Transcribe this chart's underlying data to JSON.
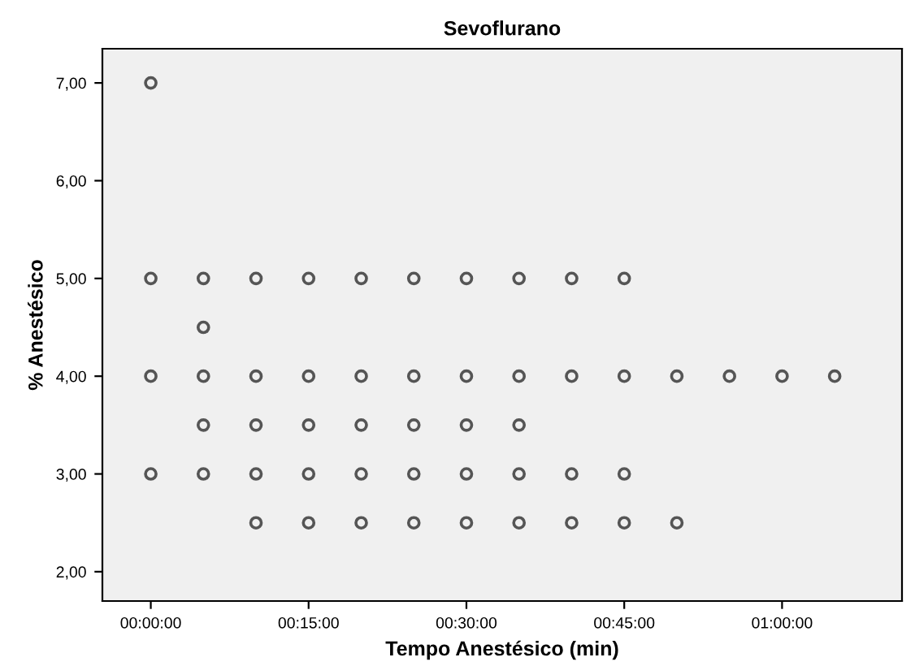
{
  "chart_data": {
    "type": "scatter",
    "title": "Sevoflurano",
    "xlabel": "Tempo Anestésico (min)",
    "ylabel": "% Anestésico",
    "marker": "circle",
    "grid": false,
    "legend": false,
    "xlim": [
      -4.6,
      71.4
    ],
    "ylim": [
      1.7,
      7.35
    ],
    "xticks": [
      {
        "value": 0,
        "label": "00:00:00"
      },
      {
        "value": 15,
        "label": "00:15:00"
      },
      {
        "value": 30,
        "label": "00:30:00"
      },
      {
        "value": 45,
        "label": "00:45:00"
      },
      {
        "value": 60,
        "label": "01:00:00"
      }
    ],
    "yticks": [
      {
        "value": 2,
        "label": "2,00"
      },
      {
        "value": 3,
        "label": "3,00"
      },
      {
        "value": 4,
        "label": "4,00"
      },
      {
        "value": 5,
        "label": "5,00"
      },
      {
        "value": 6,
        "label": "6,00"
      },
      {
        "value": 7,
        "label": "7,00"
      }
    ],
    "series": [
      {
        "color": "#555555",
        "x": [
          0,
          0,
          5,
          10,
          15,
          20,
          25,
          30,
          35,
          40,
          45,
          5,
          0,
          5,
          10,
          15,
          20,
          25,
          30,
          35,
          40,
          45,
          50,
          55,
          60,
          65,
          5,
          10,
          15,
          20,
          25,
          30,
          35,
          0,
          5,
          10,
          15,
          20,
          25,
          30,
          35,
          40,
          45,
          10,
          15,
          20,
          25,
          30,
          35,
          40,
          45,
          50
        ],
        "values": [
          7,
          5,
          5,
          5,
          5,
          5,
          5,
          5,
          5,
          5,
          5,
          4.5,
          4,
          4,
          4,
          4,
          4,
          4,
          4,
          4,
          4,
          4,
          4,
          4,
          4,
          4,
          3.5,
          3.5,
          3.5,
          3.5,
          3.5,
          3.5,
          3.5,
          3,
          3,
          3,
          3,
          3,
          3,
          3,
          3,
          3,
          3,
          2.5,
          2.5,
          2.5,
          2.5,
          2.5,
          2.5,
          2.5,
          2.5,
          2.5
        ]
      }
    ]
  }
}
